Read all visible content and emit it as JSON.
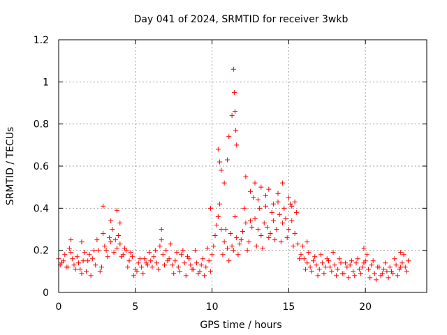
{
  "chart_data": {
    "type": "scatter",
    "title": "Day 041 of 2024, SRMTID for receiver 3wkb",
    "xlabel": "GPS time / hours",
    "ylabel": "SRMTID / TECUs",
    "xlim": [
      0,
      24
    ],
    "ylim": [
      0,
      1.2
    ],
    "xticks": [
      0,
      5,
      10,
      15,
      20
    ],
    "xtick_labels": [
      "0",
      "5",
      "10",
      "15",
      "20"
    ],
    "yticks": [
      0,
      0.2,
      0.4,
      0.6,
      0.8,
      1.0,
      1.2
    ],
    "ytick_labels": [
      "0",
      "0.2",
      "0.4",
      "0.6",
      "0.8",
      "1",
      "1.2"
    ],
    "grid": true,
    "marker": "+",
    "series": [
      {
        "name": "SRMTID",
        "color": "#ff0000",
        "x": [
          0.0,
          0.2,
          0.4,
          0.6,
          0.8,
          1.0,
          1.2,
          1.4,
          1.6,
          1.8,
          2.0,
          2.2,
          2.4,
          2.6,
          2.8,
          3.0,
          3.2,
          3.4,
          3.6,
          3.8,
          4.0,
          4.2,
          4.4,
          4.6,
          4.8,
          5.0,
          5.2,
          5.4,
          5.6,
          5.8,
          6.0,
          6.2,
          6.4,
          6.6,
          6.8,
          7.0,
          7.2,
          7.4,
          7.6,
          7.8,
          8.0,
          8.2,
          8.4,
          8.6,
          8.8,
          9.0,
          9.2,
          9.4,
          9.6,
          9.8,
          10.0,
          10.2,
          10.4,
          10.6,
          10.8,
          11.0,
          11.2,
          11.4,
          11.6,
          11.8,
          12.0,
          12.2,
          12.4,
          12.6,
          12.8,
          13.0,
          13.2,
          13.4,
          13.6,
          13.8,
          14.0,
          14.2,
          14.4,
          14.6,
          14.8,
          15.0,
          15.2,
          15.4,
          15.6,
          15.8,
          16.0,
          16.2,
          16.4,
          16.6,
          16.8,
          17.0,
          17.2,
          17.4,
          17.6,
          17.8,
          18.0,
          18.2,
          18.4,
          18.6,
          18.8,
          19.0,
          19.2,
          19.4,
          19.6,
          19.8,
          20.0,
          20.2,
          20.4,
          20.6,
          20.8,
          21.0,
          21.2,
          21.4,
          21.6,
          21.8,
          22.0,
          22.2,
          22.4,
          22.6,
          22.8,
          0.1,
          0.3,
          0.5,
          0.7,
          0.9,
          1.1,
          1.3,
          1.5,
          1.7,
          1.9,
          2.1,
          2.3,
          2.5,
          2.7,
          2.9,
          3.1,
          3.3,
          3.5,
          3.7,
          3.9,
          4.1,
          4.3,
          4.5,
          4.7,
          4.9,
          5.1,
          5.3,
          5.5,
          5.7,
          5.9,
          6.1,
          6.3,
          6.5,
          6.7,
          6.9,
          7.1,
          7.3,
          7.5,
          7.7,
          7.9,
          8.1,
          8.3,
          8.5,
          8.7,
          8.9,
          9.1,
          9.3,
          9.5,
          9.7,
          9.9,
          10.1,
          10.3,
          10.5,
          10.7,
          10.9,
          11.1,
          11.3,
          11.5,
          11.7,
          11.9,
          12.1,
          12.3,
          12.5,
          12.7,
          12.9,
          13.1,
          13.3,
          13.5,
          13.7,
          13.9,
          14.1,
          14.3,
          14.5,
          14.7,
          14.9,
          15.1,
          15.3,
          15.5,
          15.7,
          15.9,
          16.1,
          16.3,
          16.5,
          16.7,
          16.9,
          17.1,
          17.3,
          17.5,
          17.7,
          17.9,
          18.1,
          18.3,
          18.5,
          18.7,
          18.9,
          19.1,
          19.3,
          19.5,
          19.7,
          19.9,
          20.1,
          20.3,
          20.5,
          20.7,
          20.9,
          21.1,
          21.3,
          21.5,
          21.7,
          21.9,
          22.1,
          22.3,
          22.5,
          22.7,
          10.4,
          10.5,
          10.6,
          10.8,
          11.0,
          11.1,
          11.3,
          11.4,
          11.45,
          11.5,
          11.55,
          11.6,
          12.5,
          12.8,
          13.0,
          13.2,
          13.5,
          13.7,
          14.0,
          14.3,
          14.6,
          15.0,
          15.2,
          15.4,
          2.9,
          3.8,
          4.0,
          6.7,
          16.2,
          19.9,
          22.3,
          0.8,
          1.5,
          3.4,
          9.9,
          12.2
        ],
        "y": [
          0.16,
          0.14,
          0.18,
          0.12,
          0.19,
          0.13,
          0.17,
          0.11,
          0.15,
          0.1,
          0.18,
          0.16,
          0.13,
          0.2,
          0.12,
          0.22,
          0.17,
          0.24,
          0.19,
          0.21,
          0.23,
          0.18,
          0.2,
          0.15,
          0.17,
          0.11,
          0.14,
          0.12,
          0.16,
          0.13,
          0.15,
          0.17,
          0.14,
          0.22,
          0.18,
          0.2,
          0.16,
          0.13,
          0.15,
          0.12,
          0.18,
          0.14,
          0.17,
          0.13,
          0.11,
          0.14,
          0.1,
          0.16,
          0.12,
          0.15,
          0.18,
          0.27,
          0.36,
          0.3,
          0.24,
          0.21,
          0.28,
          0.2,
          0.26,
          0.23,
          0.29,
          0.33,
          0.24,
          0.31,
          0.35,
          0.3,
          0.27,
          0.33,
          0.31,
          0.28,
          0.34,
          0.3,
          0.37,
          0.33,
          0.35,
          0.3,
          0.34,
          0.28,
          0.23,
          0.18,
          0.16,
          0.14,
          0.12,
          0.15,
          0.13,
          0.11,
          0.14,
          0.12,
          0.15,
          0.1,
          0.13,
          0.11,
          0.14,
          0.09,
          0.12,
          0.13,
          0.1,
          0.14,
          0.11,
          0.12,
          0.15,
          0.11,
          0.13,
          0.09,
          0.12,
          0.08,
          0.11,
          0.1,
          0.12,
          0.09,
          0.13,
          0.11,
          0.14,
          0.12,
          0.15,
          0.13,
          0.15,
          0.12,
          0.21,
          0.16,
          0.11,
          0.14,
          0.09,
          0.19,
          0.15,
          0.08,
          0.2,
          0.25,
          0.1,
          0.28,
          0.2,
          0.26,
          0.3,
          0.25,
          0.27,
          0.17,
          0.21,
          0.12,
          0.19,
          0.08,
          0.1,
          0.16,
          0.09,
          0.14,
          0.19,
          0.12,
          0.2,
          0.11,
          0.25,
          0.13,
          0.15,
          0.23,
          0.09,
          0.19,
          0.1,
          0.2,
          0.08,
          0.16,
          0.11,
          0.2,
          0.09,
          0.13,
          0.08,
          0.21,
          0.1,
          0.22,
          0.32,
          0.42,
          0.18,
          0.3,
          0.15,
          0.22,
          0.36,
          0.18,
          0.25,
          0.4,
          0.2,
          0.34,
          0.45,
          0.22,
          0.4,
          0.21,
          0.41,
          0.26,
          0.38,
          0.25,
          0.43,
          0.24,
          0.4,
          0.26,
          0.42,
          0.22,
          0.38,
          0.16,
          0.22,
          0.11,
          0.19,
          0.1,
          0.17,
          0.08,
          0.18,
          0.09,
          0.16,
          0.12,
          0.19,
          0.08,
          0.16,
          0.09,
          0.14,
          0.07,
          0.15,
          0.08,
          0.16,
          0.09,
          0.14,
          0.18,
          0.07,
          0.15,
          0.06,
          0.12,
          0.09,
          0.14,
          0.07,
          0.1,
          0.16,
          0.08,
          0.12,
          0.18,
          0.1,
          0.68,
          0.62,
          0.58,
          0.52,
          0.63,
          0.74,
          0.84,
          1.06,
          0.95,
          0.86,
          0.77,
          0.7,
          0.48,
          0.52,
          0.44,
          0.5,
          0.46,
          0.49,
          0.42,
          0.47,
          0.52,
          0.45,
          0.41,
          0.43,
          0.41,
          0.39,
          0.33,
          0.3,
          0.24,
          0.21,
          0.19,
          0.25,
          0.24,
          0.34,
          0.4,
          0.55
        ]
      }
    ]
  }
}
